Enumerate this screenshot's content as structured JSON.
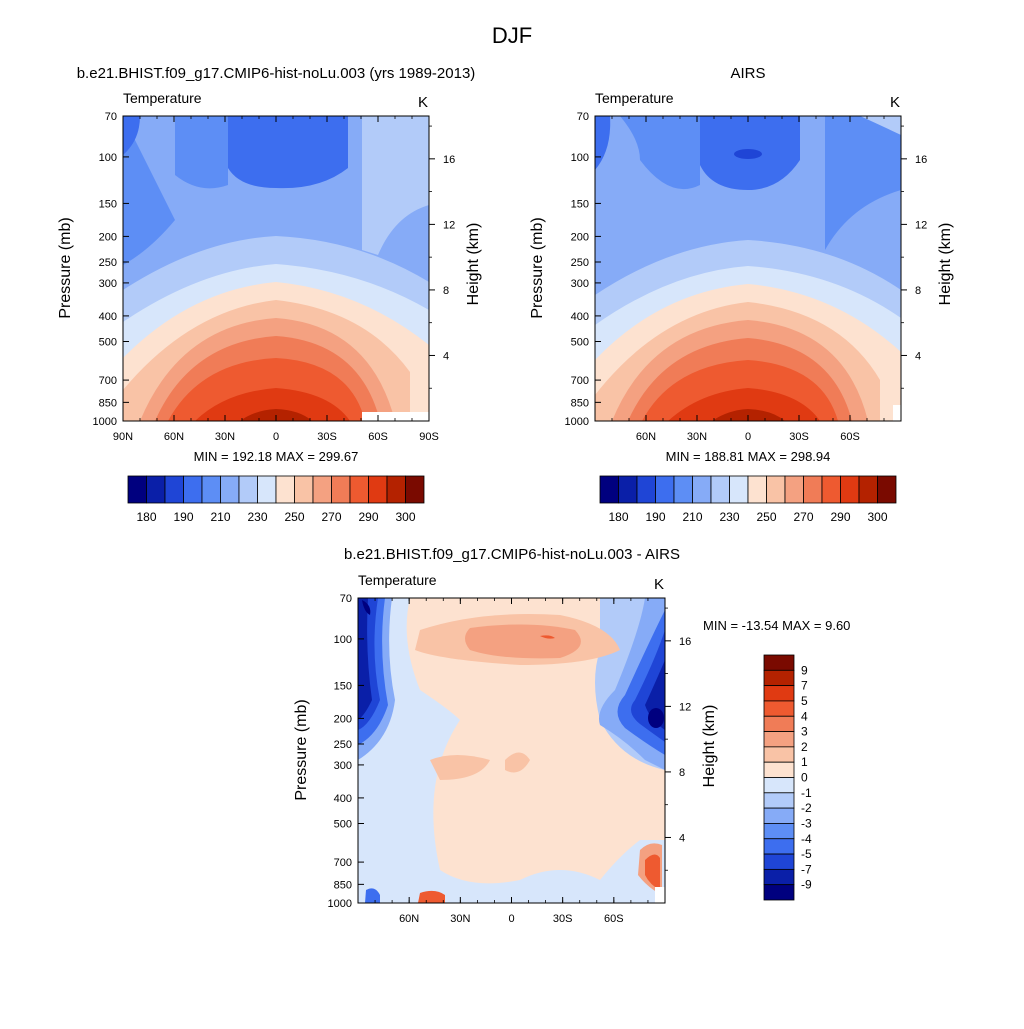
{
  "page": {
    "title": "DJF"
  },
  "colors": {
    "model_obs_scale": [
      "#00007f",
      "#0a1fa8",
      "#1f45d6",
      "#3d6eef",
      "#5d8ef5",
      "#86abf7",
      "#b2cbf9",
      "#d7e6fb",
      "#fde2d0",
      "#f9c3a6",
      "#f4a181",
      "#f07c57",
      "#ee5a30",
      "#e03a12",
      "#b42200",
      "#7a0a00"
    ],
    "diff_scale": [
      "#00007f",
      "#0a1fa8",
      "#1f45d6",
      "#3d6eef",
      "#5d8ef5",
      "#86abf7",
      "#b2cbf9",
      "#d7e6fb",
      "#fde2d0",
      "#f9c3a6",
      "#f4a181",
      "#f07c57",
      "#ee5a30",
      "#e03a12",
      "#b42200",
      "#7a0a00"
    ]
  },
  "chart_data": [
    {
      "type": "heatmap",
      "title": "b.e21.BHIST.f09_g17.CMIP6-hist-noLu.003 (yrs 1989-2013)",
      "variable_label": "Temperature",
      "units_label": "K",
      "ylabel": "Pressure (mb)",
      "y2label": "Height (km)",
      "x_ticks": [
        "90N",
        "60N",
        "30N",
        "0",
        "30S",
        "60S",
        "90S"
      ],
      "y_ticks": [
        "70",
        "100",
        "150",
        "200",
        "250",
        "300",
        "400",
        "500",
        "700",
        "850",
        "1000"
      ],
      "y2_ticks": [
        "16",
        "12",
        "8",
        "4"
      ],
      "min_max_text": "MIN = 192.18  MAX = 299.67",
      "min": 192.18,
      "max": 299.67,
      "colorbar_labels": [
        "180",
        "190",
        "210",
        "230",
        "250",
        "270",
        "290",
        "300"
      ]
    },
    {
      "type": "heatmap",
      "title": "AIRS",
      "variable_label": "Temperature",
      "units_label": "K",
      "ylabel": "Pressure (mb)",
      "y2label": "Height (km)",
      "x_ticks": [
        "60N",
        "30N",
        "0",
        "30S",
        "60S"
      ],
      "y_ticks": [
        "70",
        "100",
        "150",
        "200",
        "250",
        "300",
        "400",
        "500",
        "700",
        "850",
        "1000"
      ],
      "y2_ticks": [
        "16",
        "12",
        "8",
        "4"
      ],
      "min_max_text": "MIN = 188.81  MAX = 298.94",
      "min": 188.81,
      "max": 298.94,
      "colorbar_labels": [
        "180",
        "190",
        "210",
        "230",
        "250",
        "270",
        "290",
        "300"
      ]
    },
    {
      "type": "heatmap",
      "title": "b.e21.BHIST.f09_g17.CMIP6-hist-noLu.003 - AIRS",
      "variable_label": "Temperature",
      "units_label": "K",
      "ylabel": "Pressure (mb)",
      "y2label": "Height (km)",
      "x_ticks": [
        "60N",
        "30N",
        "0",
        "30S",
        "60S"
      ],
      "y_ticks": [
        "70",
        "100",
        "150",
        "200",
        "250",
        "300",
        "400",
        "500",
        "700",
        "850",
        "1000"
      ],
      "y2_ticks": [
        "16",
        "12",
        "8",
        "4"
      ],
      "min_max_text": "MIN = -13.54  MAX =   9.60",
      "min": -13.54,
      "max": 9.6,
      "colorbar_labels": [
        "9",
        "7",
        "5",
        "4",
        "3",
        "2",
        "1",
        "0",
        "-1",
        "-2",
        "-3",
        "-4",
        "-5",
        "-7",
        "-9"
      ]
    }
  ]
}
